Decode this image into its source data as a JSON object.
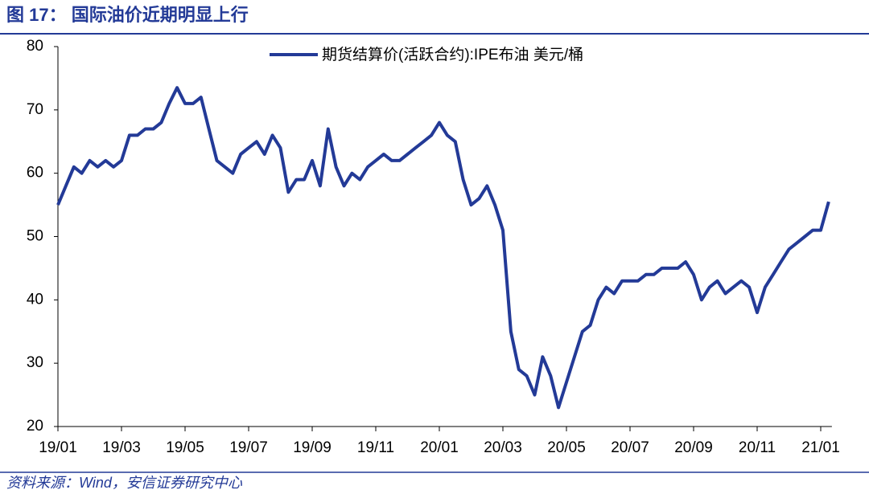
{
  "chart_data": {
    "type": "line",
    "title": "图 17： 国际油价近期明显上行",
    "source": "资料来源：Wind，安信证券研究中心",
    "categories": [
      "19/01",
      null,
      null,
      null,
      null,
      null,
      null,
      null,
      "19/03",
      null,
      null,
      null,
      null,
      null,
      null,
      null,
      "19/05",
      null,
      null,
      null,
      null,
      null,
      null,
      null,
      "19/07",
      null,
      null,
      null,
      null,
      null,
      null,
      null,
      "19/09",
      null,
      null,
      null,
      null,
      null,
      null,
      null,
      "19/11",
      null,
      null,
      null,
      null,
      null,
      null,
      null,
      "20/01",
      null,
      null,
      null,
      null,
      null,
      null,
      null,
      "20/03",
      null,
      null,
      null,
      null,
      null,
      null,
      null,
      "20/05",
      null,
      null,
      null,
      null,
      null,
      null,
      null,
      "20/07",
      null,
      null,
      null,
      null,
      null,
      null,
      null,
      "20/09",
      null,
      null,
      null,
      null,
      null,
      null,
      null,
      "20/11",
      null,
      null,
      null,
      null,
      null,
      null,
      null,
      "21/01",
      null
    ],
    "series": [
      {
        "name": "期货结算价(活跃合约):IPE布油 美元/桶",
        "color": "#233a97",
        "values": [
          55,
          58,
          61,
          60,
          62,
          61,
          62,
          61,
          62,
          66,
          66,
          67,
          67,
          68,
          71,
          73.5,
          71,
          71,
          72,
          67,
          62,
          61,
          60,
          63,
          64,
          65,
          63,
          66,
          64,
          57,
          59,
          59,
          62,
          58,
          67,
          61,
          58,
          60,
          59,
          61,
          62,
          63,
          62,
          62,
          63,
          64,
          65,
          66,
          68,
          66,
          65,
          59,
          55,
          56,
          58,
          55,
          51,
          35,
          29,
          28,
          25,
          31,
          28,
          23,
          27,
          31,
          35,
          36,
          40,
          42,
          41,
          43,
          43,
          43,
          44,
          44,
          45,
          45,
          45,
          46,
          44,
          40,
          42,
          43,
          41,
          42,
          43,
          42,
          38,
          42,
          44,
          46,
          48,
          49,
          50,
          51,
          51,
          55.5
        ]
      }
    ],
    "ylim": [
      20,
      80
    ],
    "yticks": [
      20,
      30,
      40,
      50,
      60,
      70,
      80
    ],
    "legend": "top"
  }
}
